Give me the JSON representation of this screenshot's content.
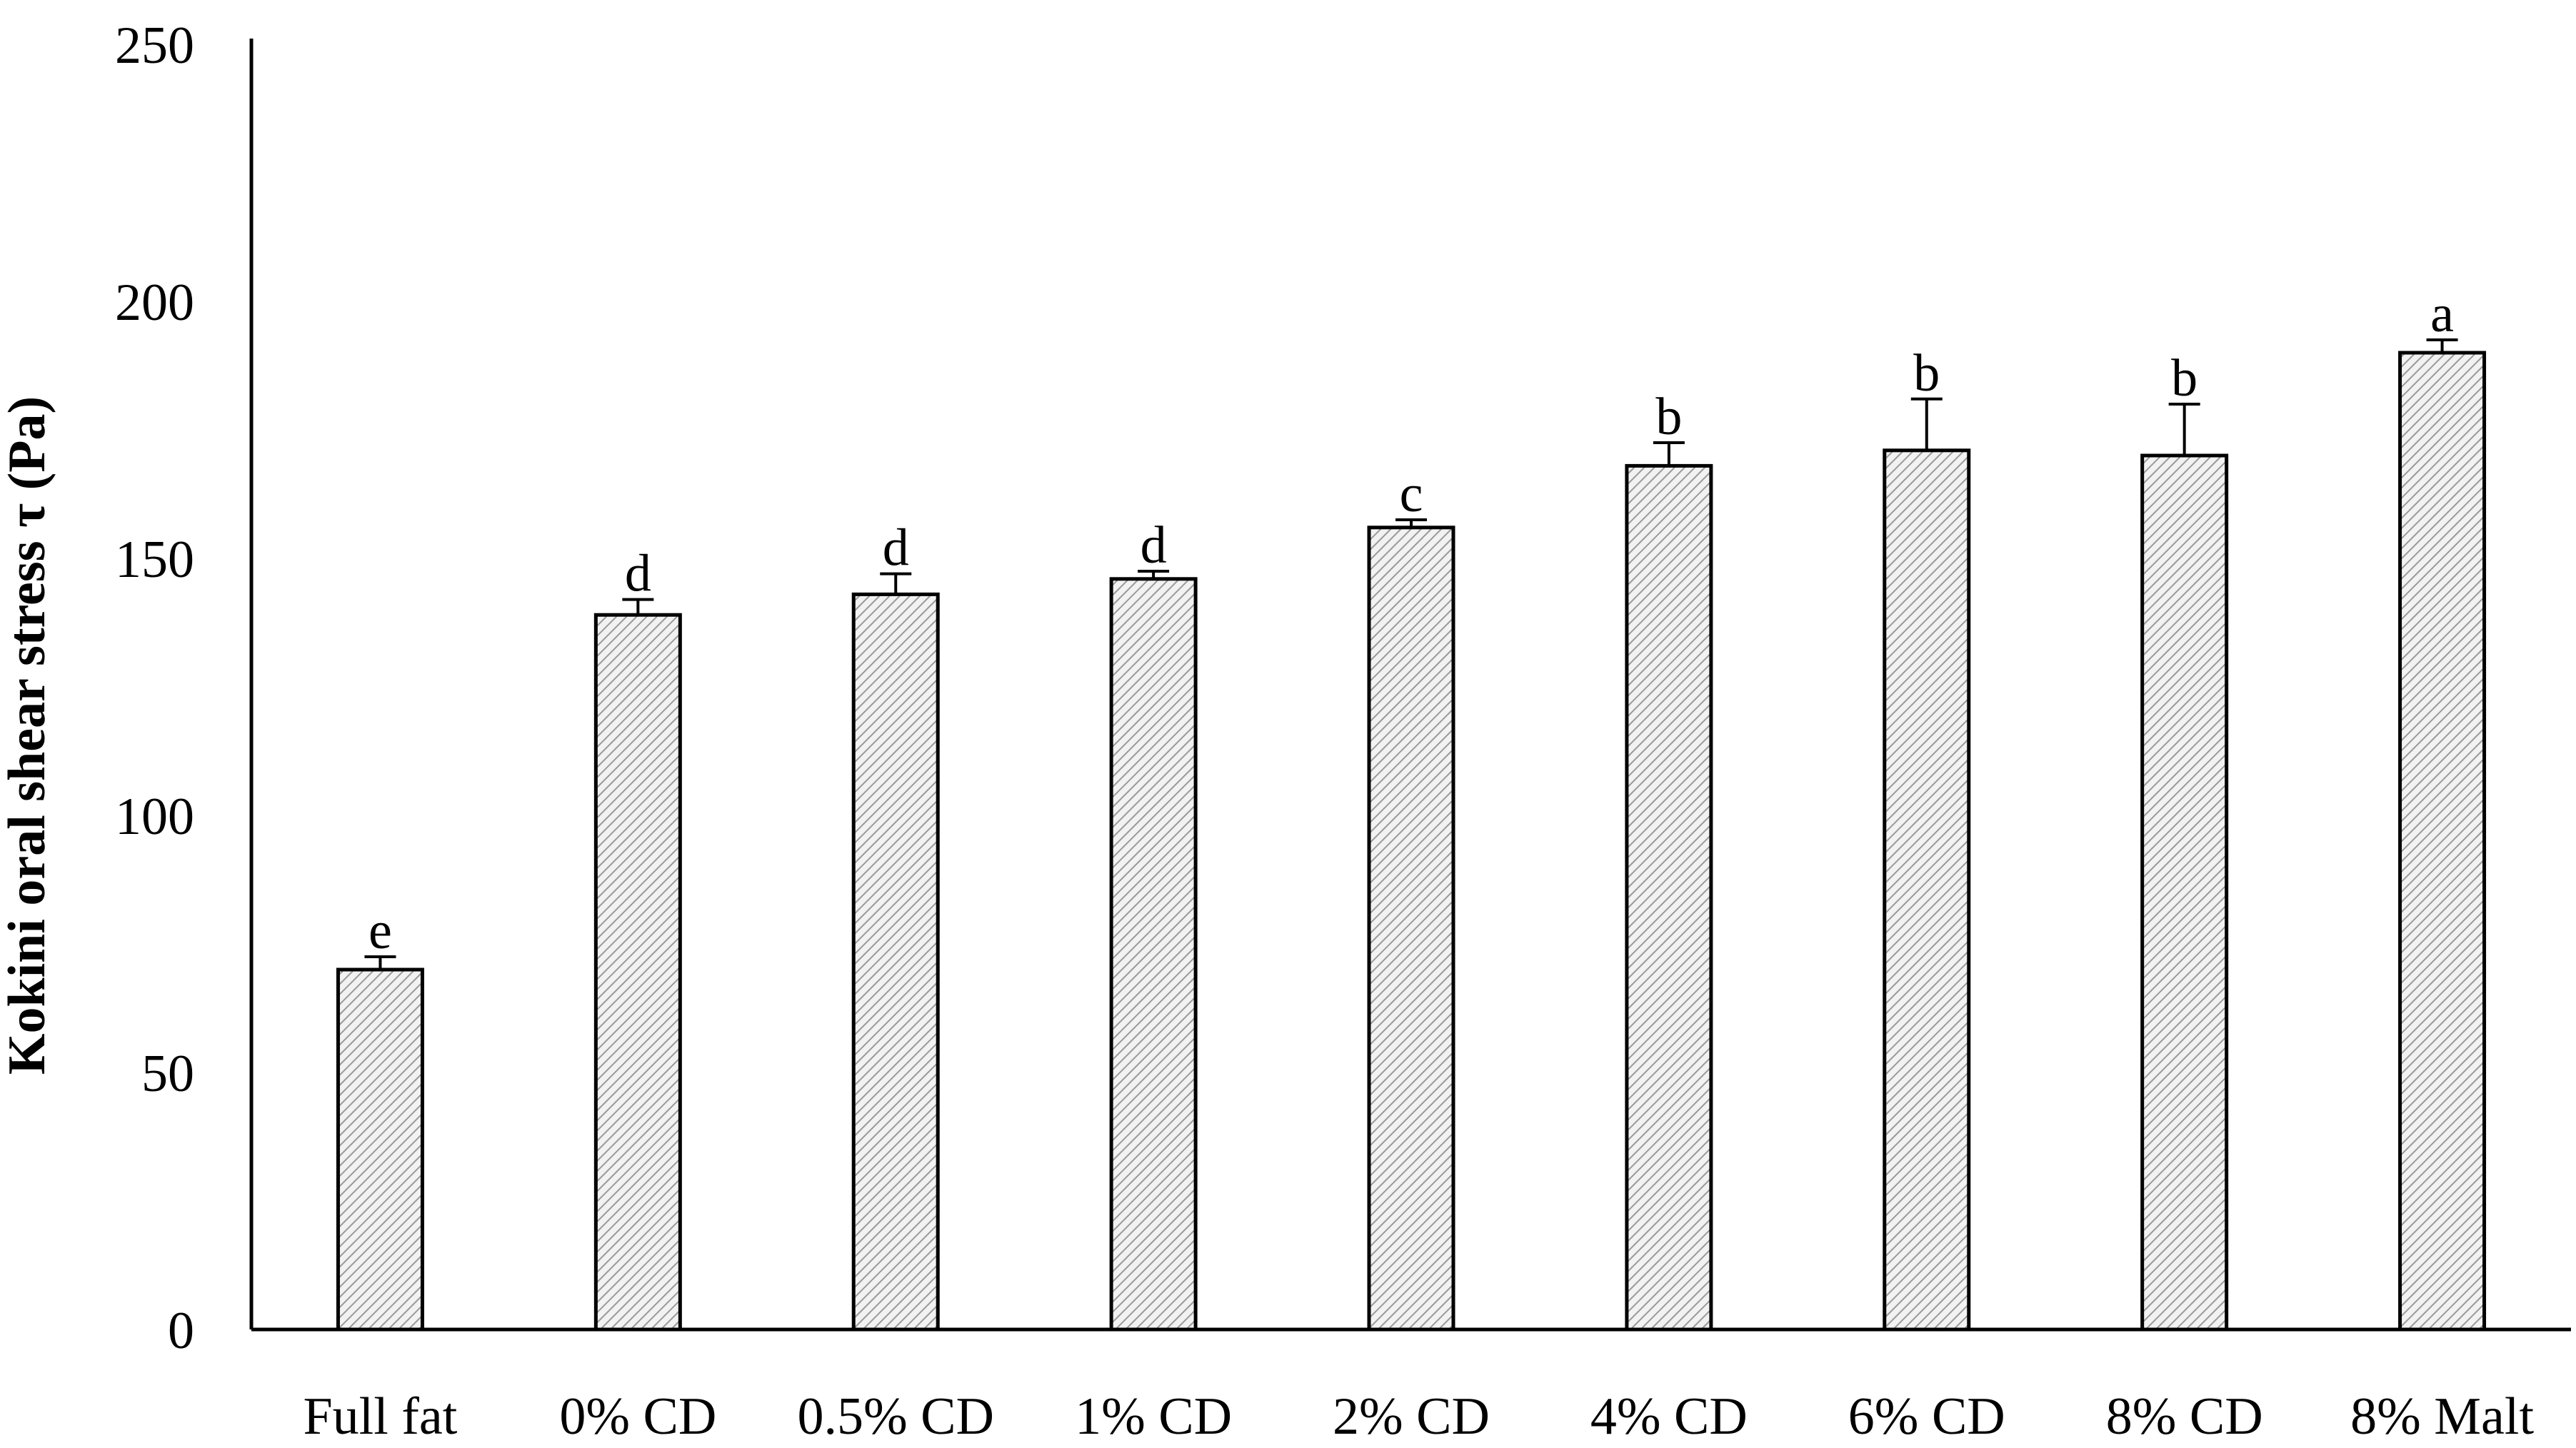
{
  "chart_data": {
    "type": "bar",
    "title": "",
    "xlabel": "",
    "ylabel": "Kokini oral shear stress τ (Pa)",
    "ylim": [
      0,
      250
    ],
    "yticks": [
      0,
      50,
      100,
      150,
      200,
      250
    ],
    "grid": false,
    "legend": "none",
    "bar_fill": "hatched light grey",
    "categories": [
      "Full fat",
      "0% CD",
      "0.5% CD",
      "1% CD",
      "2% CD",
      "4% CD",
      "6% CD",
      "8% CD",
      "8% Malt"
    ],
    "series": [
      {
        "values": [
          70,
          139,
          143,
          146,
          156,
          168,
          171,
          170,
          190
        ],
        "errors": [
          2.5,
          3,
          4,
          1.5,
          1.5,
          4.5,
          10,
          10,
          2.5
        ],
        "significance": [
          "e",
          "d",
          "d",
          "d",
          "c",
          "b",
          "b",
          "b",
          "a"
        ]
      }
    ]
  },
  "colors": {
    "bar_stroke": "#000000",
    "hatch_line": "#9a9a9a",
    "hatch_bg": "#f2f2f2",
    "axis": "#000000"
  }
}
